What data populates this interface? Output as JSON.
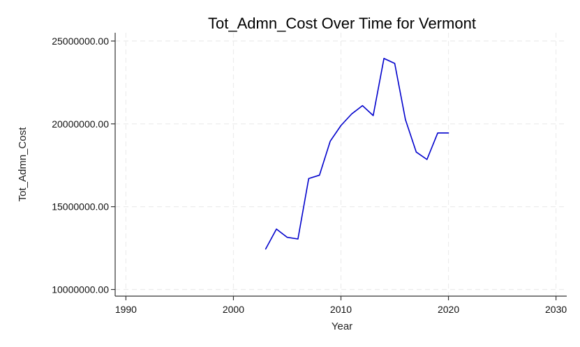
{
  "chart_data": {
    "type": "line",
    "title": "Tot_Admn_Cost Over Time for Vermont",
    "xlabel": "Year",
    "ylabel": "Tot_Admn_Cost",
    "xlim": [
      1989,
      2031
    ],
    "ylim": [
      9600000,
      25500000
    ],
    "x_ticks": [
      1990,
      2000,
      2010,
      2020,
      2030
    ],
    "x_tick_labels": [
      "1990",
      "2000",
      "2010",
      "2020",
      "2030"
    ],
    "y_ticks": [
      10000000,
      15000000,
      20000000,
      25000000
    ],
    "y_tick_labels": [
      "10000000.00",
      "15000000.00",
      "20000000.00",
      "25000000.00"
    ],
    "grid": true,
    "series": [
      {
        "color": "#0000cc",
        "x": [
          2003,
          2004,
          2005,
          2006,
          2007,
          2008,
          2009,
          2010,
          2011,
          2012,
          2013,
          2014,
          2015,
          2016,
          2017,
          2018,
          2019,
          2020
        ],
        "y": [
          12450000,
          13650000,
          13150000,
          13050000,
          16700000,
          16900000,
          18950000,
          19900000,
          20600000,
          21100000,
          20500000,
          23950000,
          23650000,
          20250000,
          18300000,
          17850000,
          19450000,
          19450000
        ]
      }
    ]
  }
}
